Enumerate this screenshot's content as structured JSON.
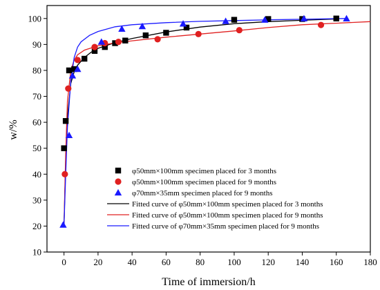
{
  "chart_data": {
    "type": "scatter",
    "xlabel": "Time of immersion/h",
    "ylabel": "w/%",
    "xlim": [
      -10,
      180
    ],
    "ylim": [
      10,
      105
    ],
    "xticks": [
      0,
      20,
      40,
      60,
      80,
      100,
      120,
      140,
      160,
      180
    ],
    "yticks": [
      10,
      20,
      30,
      40,
      50,
      60,
      70,
      80,
      90,
      100
    ],
    "legend_placement": "bottom-right",
    "series": [
      {
        "name": "φ50mm×100mm specimen placed for 3 months",
        "marker": "square",
        "color": "#000000",
        "points": [
          [
            0,
            50
          ],
          [
            1,
            60.5
          ],
          [
            3,
            80
          ],
          [
            6,
            80.5
          ],
          [
            12,
            84.5
          ],
          [
            18,
            87.5
          ],
          [
            24,
            89
          ],
          [
            30,
            90.5
          ],
          [
            36,
            91.5
          ],
          [
            48,
            93.5
          ],
          [
            60,
            94.5
          ],
          [
            72,
            96.5
          ],
          [
            100,
            99.5
          ],
          [
            120,
            99.8
          ],
          [
            140,
            99.8
          ],
          [
            160,
            100
          ]
        ]
      },
      {
        "name": "φ50mm×100mm specimen placed for 9 months",
        "marker": "circle",
        "color": "#e02020",
        "points": [
          [
            0.5,
            40
          ],
          [
            2.5,
            73
          ],
          [
            8,
            84
          ],
          [
            18,
            89
          ],
          [
            24,
            90.5
          ],
          [
            32,
            91
          ],
          [
            55,
            92
          ],
          [
            79,
            94
          ],
          [
            103,
            95.5
          ],
          [
            151,
            97.5
          ]
        ]
      },
      {
        "name": "φ70mm×35mm specimen placed for 9 months",
        "marker": "triangle",
        "color": "#1a1aff",
        "points": [
          [
            -0.5,
            20.5
          ],
          [
            3,
            55
          ],
          [
            5,
            78
          ],
          [
            8,
            80.5
          ],
          [
            22,
            91
          ],
          [
            34,
            96
          ],
          [
            46,
            97
          ],
          [
            70,
            98
          ],
          [
            95,
            99
          ],
          [
            118,
            99.5
          ],
          [
            141,
            100
          ],
          [
            166,
            100
          ]
        ]
      }
    ],
    "fitted_curves": [
      {
        "name": "Fitted curve of φ50mm×100mm specimen placed for 3 months",
        "color": "#000000",
        "points": [
          [
            0,
            20
          ],
          [
            1,
            45
          ],
          [
            2,
            62
          ],
          [
            4,
            75
          ],
          [
            6,
            79.5
          ],
          [
            8,
            82
          ],
          [
            12,
            85
          ],
          [
            16,
            87
          ],
          [
            20,
            88.5
          ],
          [
            30,
            90.7
          ],
          [
            40,
            92.3
          ],
          [
            60,
            94.8
          ],
          [
            80,
            96.7
          ],
          [
            100,
            98
          ],
          [
            120,
            98.8
          ],
          [
            140,
            99.3
          ],
          [
            160,
            99.8
          ]
        ]
      },
      {
        "name": "Fitted curve of φ50mm×100mm specimen placed for 9 months",
        "color": "#e02020",
        "points": [
          [
            0,
            20
          ],
          [
            1,
            48
          ],
          [
            2,
            68
          ],
          [
            4,
            80
          ],
          [
            6,
            84
          ],
          [
            8,
            86
          ],
          [
            12,
            87.8
          ],
          [
            20,
            89.5
          ],
          [
            30,
            90.6
          ],
          [
            40,
            91.4
          ],
          [
            60,
            92.8
          ],
          [
            80,
            94
          ],
          [
            100,
            95.2
          ],
          [
            120,
            96.5
          ],
          [
            140,
            97.6
          ],
          [
            160,
            98.2
          ],
          [
            180,
            98.8
          ]
        ]
      },
      {
        "name": "Fitted curve of φ70mm×35mm specimen placed for 9 months",
        "color": "#1a1aff",
        "points": [
          [
            0,
            20
          ],
          [
            1,
            40
          ],
          [
            2,
            58
          ],
          [
            4,
            76
          ],
          [
            6,
            85
          ],
          [
            8,
            89
          ],
          [
            10,
            91
          ],
          [
            15,
            93.5
          ],
          [
            20,
            95
          ],
          [
            30,
            96.8
          ],
          [
            40,
            97.6
          ],
          [
            60,
            98.4
          ],
          [
            80,
            98.9
          ],
          [
            100,
            99.2
          ],
          [
            120,
            99.5
          ],
          [
            140,
            99.7
          ],
          [
            165,
            100
          ]
        ]
      }
    ]
  }
}
